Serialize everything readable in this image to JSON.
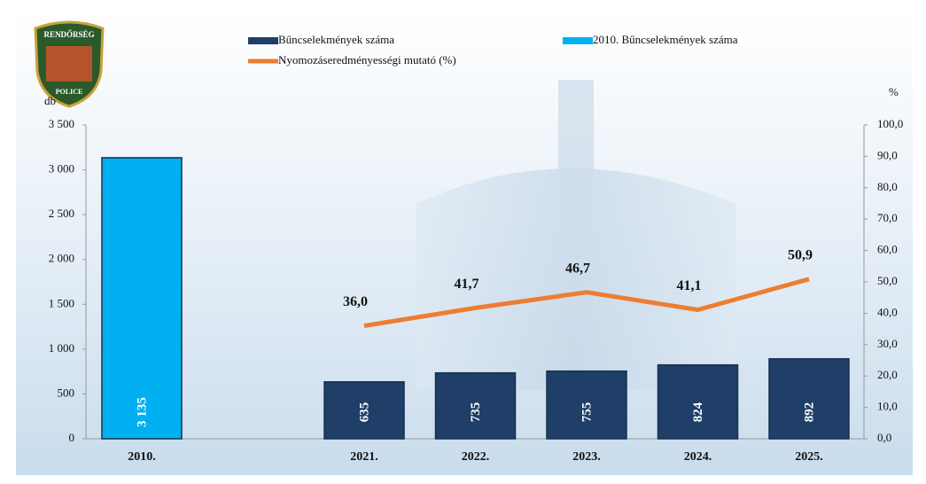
{
  "logo": {
    "top": "RENDŐRSÉG",
    "bottom": "POLICE"
  },
  "chart_data": {
    "type": "bar",
    "y_label": "db",
    "y2_label": "%",
    "categories": [
      "2010.",
      null,
      "2021.",
      "2022.",
      "2023.",
      "2024.",
      "2025."
    ],
    "series": [
      {
        "name": "Bűncselekmények száma",
        "type": "bar",
        "color": "#1f3f68",
        "values": [
          null,
          null,
          635,
          735,
          755,
          824,
          892
        ],
        "value_labels": [
          null,
          null,
          "635",
          "735",
          "755",
          "824",
          "892"
        ]
      },
      {
        "name": "2010. Bűncselekmények száma",
        "type": "bar",
        "color": "#00b0f0",
        "values": [
          3135,
          null,
          null,
          null,
          null,
          null,
          null
        ],
        "value_labels": [
          "3 135",
          null,
          null,
          null,
          null,
          null,
          null
        ]
      },
      {
        "name": "Nyomozáseredményességi mutató (%)",
        "type": "line",
        "axis": "y2",
        "color": "#ed7d31",
        "values": [
          null,
          null,
          36.0,
          41.7,
          46.7,
          41.1,
          50.9
        ],
        "value_labels": [
          null,
          null,
          "36,0",
          "41,7",
          "46,7",
          "41,1",
          "50,9"
        ]
      }
    ],
    "ylim": [
      0,
      3500
    ],
    "yticks": [
      0,
      500,
      {
        "value": 1000,
        "label": "1 000"
      },
      {
        "value": 1500,
        "label": "1 500"
      },
      {
        "value": 2000,
        "label": "2 000"
      },
      {
        "value": 2500,
        "label": "2 500"
      },
      {
        "value": 3000,
        "label": "3 000"
      },
      {
        "value": 3500,
        "label": "3 500"
      }
    ],
    "y2lim": [
      0,
      100
    ],
    "y2ticks": [
      {
        "value": 0,
        "label": "0,0"
      },
      {
        "value": 10,
        "label": "10,0"
      },
      {
        "value": 20,
        "label": "20,0"
      },
      {
        "value": 30,
        "label": "30,0"
      },
      {
        "value": 40,
        "label": "40,0"
      },
      {
        "value": 50,
        "label": "50,0"
      },
      {
        "value": 60,
        "label": "60,0"
      },
      {
        "value": 70,
        "label": "70,0"
      },
      {
        "value": 80,
        "label": "80,0"
      },
      {
        "value": 90,
        "label": "90,0"
      },
      {
        "value": 100,
        "label": "100,0"
      }
    ],
    "grid": false
  }
}
